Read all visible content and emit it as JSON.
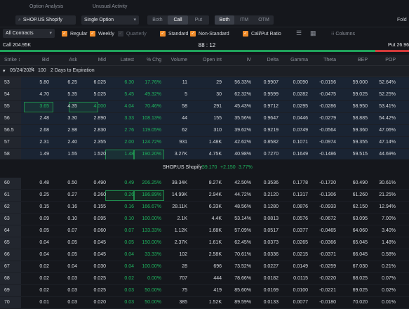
{
  "tabs": [
    "Option Analysis",
    "Unusual Activity"
  ],
  "toolbar": {
    "symbol": "SHOP.US Shopify",
    "strategy": "Single Option",
    "side_options": [
      "Both",
      "Call",
      "Put"
    ],
    "side_selected": "Call",
    "money_options": [
      "Both",
      "ITM",
      "OTM"
    ],
    "money_selected": "Both",
    "fold_label": "Fold"
  },
  "filters": {
    "contracts": "All Contracts",
    "regular": "Regular",
    "weekly": "Weekly",
    "quarterly": "Quarterly",
    "standard": "Standard",
    "non_standard": "Non-Standard",
    "ratio": "Call/Put Ratio",
    "columns": "Columns"
  },
  "ratio": {
    "call": "Call 204.95K",
    "center": "88 : 12",
    "put": "Put 26.96"
  },
  "colors": {
    "up": "#1fb35e",
    "down": "#e04848",
    "accent": "#f08c2a"
  },
  "headers": [
    "Strike ↕",
    "Bid",
    "Ask",
    "Mid",
    "Latest",
    "% Chg",
    "Volume",
    "Open Int",
    "IV",
    "Delta",
    "Gamma",
    "Theta",
    "BEP",
    "POP"
  ],
  "expiry": {
    "date": "05/24/2024",
    "label": "W",
    "count": "100",
    "days": "2 Days to Expiration"
  },
  "underlying": {
    "name": "SHOP.US Shopify:",
    "price": "59.170",
    "change": "+2.150",
    "pct": "3.77%"
  },
  "rows_itm": [
    [
      "53",
      "5.80",
      "6.25",
      "6.025",
      "6.30",
      "17.76%",
      "11",
      "29",
      "56.33%",
      "0.9907",
      "0.0090",
      "-0.0156",
      "59.000",
      "52.64%"
    ],
    [
      "54",
      "4.70",
      "5.35",
      "5.025",
      "5.45",
      "49.32%",
      "5",
      "30",
      "62.32%",
      "0.9599",
      "0.0282",
      "-0.0475",
      "59.025",
      "52.25%"
    ],
    [
      "55",
      "3.65",
      "4.35",
      "4.000",
      "4.04",
      "70.46%",
      "58",
      "291",
      "45.43%",
      "0.9712",
      "0.0295",
      "-0.0286",
      "58.950",
      "53.41%"
    ],
    [
      "56",
      "2.48",
      "3.30",
      "2.890",
      "3.33",
      "108.13%",
      "44",
      "155",
      "35.56%",
      "0.9647",
      "0.0446",
      "-0.0279",
      "58.885",
      "54.42%"
    ],
    [
      "56.5",
      "2.68",
      "2.98",
      "2.830",
      "2.76",
      "119.05%",
      "62",
      "310",
      "39.62%",
      "0.9219",
      "0.0749",
      "-0.0564",
      "59.360",
      "47.06%"
    ],
    [
      "57",
      "2.31",
      "2.40",
      "2.355",
      "2.00",
      "124.72%",
      "931",
      "1.48K",
      "42.62%",
      "0.8582",
      "0.1071",
      "-0.0974",
      "59.355",
      "47.14%"
    ],
    [
      "58",
      "1.49",
      "1.55",
      "1.520",
      "1.48",
      "190.20%",
      "3.27K",
      "4.75K",
      "40.98%",
      "0.7270",
      "0.1649",
      "-0.1486",
      "59.515",
      "44.69%"
    ],
    [
      "59",
      "0.88",
      "0.92",
      "0.900",
      "0.87",
      "222.22%",
      "11.28K",
      "5.38K",
      "40.89%",
      "0.5407",
      "0.1973",
      "-0.1823",
      "59.895",
      "38.98%"
    ]
  ],
  "rows_otm": [
    [
      "60",
      "0.48",
      "0.50",
      "0.490",
      "0.49",
      "206.25%",
      "39.34K",
      "8.27K",
      "42.50%",
      "0.3536",
      "0.1778",
      "-0.1720",
      "60.490",
      "30.61%"
    ],
    [
      "61",
      "0.25",
      "0.27",
      "0.260",
      "0.26",
      "186.89%",
      "14.99K",
      "2.94K",
      "44.72%",
      "0.2120",
      "0.1317",
      "-0.1306",
      "61.260",
      "21.25%"
    ],
    [
      "62",
      "0.15",
      "0.16",
      "0.155",
      "0.16",
      "166.67%",
      "28.11K",
      "6.33K",
      "48.56%",
      "0.1280",
      "0.0876",
      "-0.0933",
      "62.150",
      "12.94%"
    ],
    [
      "63",
      "0.09",
      "0.10",
      "0.095",
      "0.10",
      "100.00%",
      "2.1K",
      "4.4K",
      "53.14%",
      "0.0813",
      "0.0576",
      "-0.0672",
      "63.095",
      "7.00%"
    ],
    [
      "64",
      "0.05",
      "0.07",
      "0.060",
      "0.07",
      "133.33%",
      "1.12K",
      "1.68K",
      "57.09%",
      "0.0517",
      "0.0377",
      "-0.0465",
      "64.060",
      "3.40%"
    ],
    [
      "65",
      "0.04",
      "0.05",
      "0.045",
      "0.05",
      "150.00%",
      "2.37K",
      "1.61K",
      "62.45%",
      "0.0373",
      "0.0265",
      "-0.0366",
      "65.045",
      "1.48%"
    ],
    [
      "66",
      "0.04",
      "0.05",
      "0.045",
      "0.04",
      "33.33%",
      "102",
      "2.58K",
      "70.61%",
      "0.0336",
      "0.0215",
      "-0.0371",
      "66.045",
      "0.58%"
    ],
    [
      "67",
      "0.02",
      "0.04",
      "0.030",
      "0.04",
      "100.00%",
      "28",
      "696",
      "73.52%",
      "0.0227",
      "0.0149",
      "-0.0259",
      "67.030",
      "0.21%"
    ],
    [
      "68",
      "0.02",
      "0.03",
      "0.025",
      "0.02",
      "0.00%",
      "707",
      "444",
      "78.66%",
      "0.0182",
      "0.0115",
      "-0.0220",
      "68.025",
      "0.07%"
    ],
    [
      "69",
      "0.02",
      "0.03",
      "0.025",
      "0.03",
      "50.00%",
      "75",
      "419",
      "85.60%",
      "0.0169",
      "0.0100",
      "-0.0221",
      "69.025",
      "0.02%"
    ],
    [
      "70",
      "0.01",
      "0.03",
      "0.020",
      "0.03",
      "50.00%",
      "385",
      "1.52K",
      "89.59%",
      "0.0133",
      "0.0077",
      "-0.0180",
      "70.020",
      "0.01%"
    ]
  ]
}
